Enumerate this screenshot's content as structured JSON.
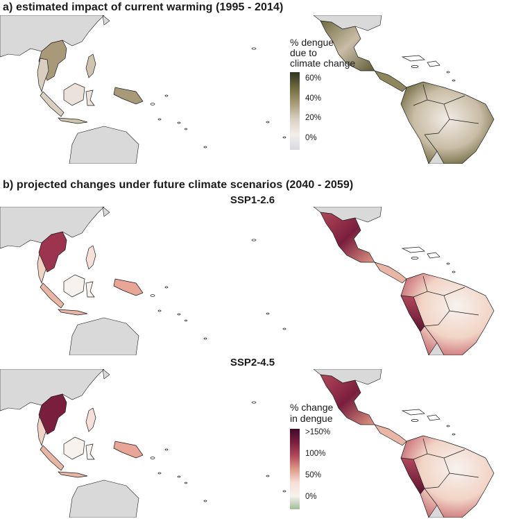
{
  "panel_a": {
    "heading": "a) estimated impact of current warming (1995 - 2014)",
    "legend": {
      "title_lines": [
        "% dengue",
        "due to",
        "climate change"
      ],
      "ticks": [
        "60%",
        "40%",
        "20%",
        "0%"
      ],
      "colors": [
        "#2f3520",
        "#6f6a40",
        "#a89a78",
        "#d8cfc0",
        "#f4eeea",
        "#d9d9e3"
      ]
    }
  },
  "panel_b": {
    "heading": "b) projected changes under future climate scenarios (2040 - 2059)",
    "scenarios": [
      "SSP1-2.6",
      "SSP2-4.5"
    ],
    "legend": {
      "title_lines": [
        "% change",
        "in dengue"
      ],
      "ticks": [
        ">150%",
        "100%",
        "50%",
        "0%"
      ],
      "colors": [
        "#3e0a2c",
        "#7a1e3e",
        "#b2485a",
        "#de9886",
        "#f6dfd4",
        "#f7f2ee",
        "#9fbd98"
      ]
    }
  },
  "map_colors": {
    "land_nodata": "#d9d9d9",
    "border": "#1a1a1a",
    "background": "#ffffff"
  }
}
